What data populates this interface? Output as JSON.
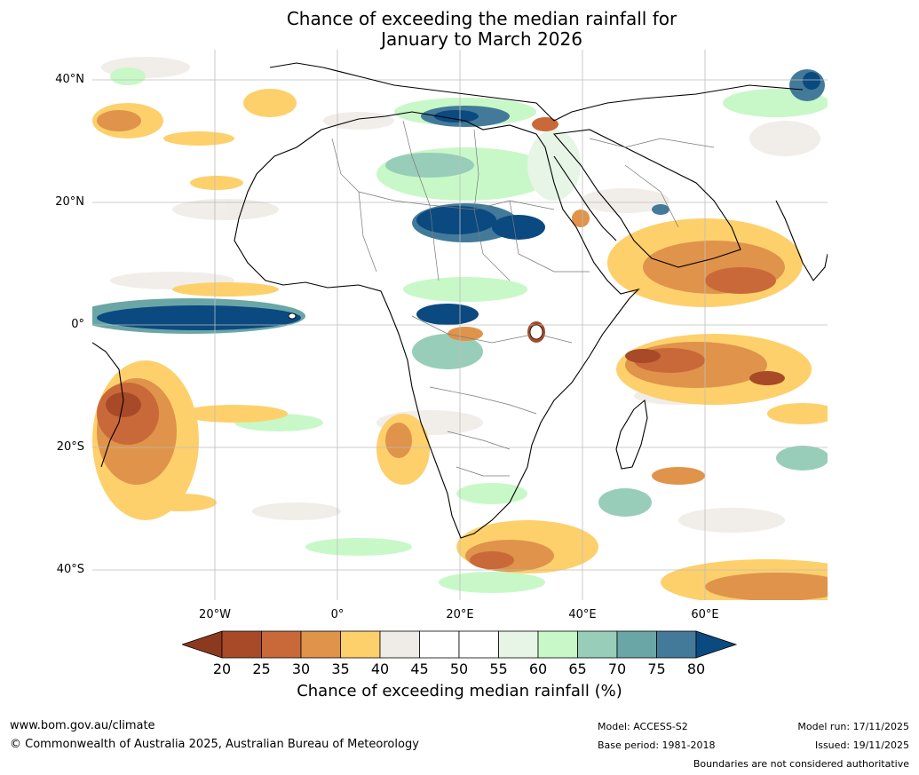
{
  "title": {
    "line1": "Chance of exceeding the median rainfall for",
    "line2": "January to March 2026"
  },
  "axes": {
    "lat_labels": [
      "40°N",
      "20°N",
      "0°",
      "20°S",
      "40°S"
    ],
    "lon_labels": [
      "20°W",
      "0°",
      "20°E",
      "40°E",
      "60°E"
    ]
  },
  "legend": {
    "title": "Chance of exceeding median rainfall (%)",
    "ticks": [
      "20",
      "25",
      "30",
      "35",
      "40",
      "45",
      "50",
      "55",
      "60",
      "65",
      "70",
      "75",
      "80"
    ],
    "low_extend_color": "#8b3a1f",
    "high_extend_color": "#0b4a80",
    "colors": [
      "#a84a27",
      "#c9693a",
      "#e0934a",
      "#fdd06c",
      "#efebe6",
      "#ffffff",
      "#ffffff",
      "#e7f5e7",
      "#c8f8c8",
      "#98ceb9",
      "#6aa6a6",
      "#437a9a"
    ]
  },
  "footer": {
    "website": "www.bom.gov.au/climate",
    "copyright": "© Commonwealth of Australia 2025, Australian Bureau of Meteorology",
    "model": "Model: ACCESS-S2",
    "base_period": "Base period: 1981-2018",
    "model_run": "Model run: 17/11/2025",
    "issued": "Issued: 19/11/2025",
    "disclaimer": "Boundaries are not considered authoritative"
  }
}
